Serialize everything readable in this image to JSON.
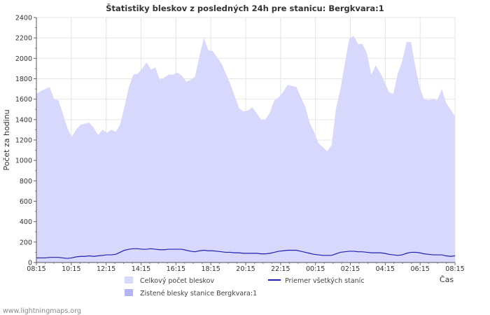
{
  "chart_data": {
    "type": "area",
    "title": "Štatistiky bleskov z posledných 24h pre stanicu: Bergkvara:1",
    "ylabel": "Počet za hodinu",
    "xlabel": "Čas",
    "ylim": [
      0,
      2400
    ],
    "yticks": [
      0,
      200,
      400,
      600,
      800,
      1000,
      1200,
      1400,
      1600,
      1800,
      2000,
      2200,
      2400
    ],
    "xticks": [
      "08:15",
      "10:15",
      "12:15",
      "14:15",
      "16:15",
      "18:15",
      "20:15",
      "22:15",
      "00:15",
      "02:15",
      "04:15",
      "06:15",
      "08:15"
    ],
    "x_minutes_span": 1440,
    "grid": true,
    "series": [
      {
        "name": "Celkový počet bleskov",
        "style": "area",
        "color": "#d8d8fc",
        "values": [
          1650,
          1680,
          1700,
          1720,
          1600,
          1590,
          1460,
          1320,
          1230,
          1300,
          1350,
          1360,
          1370,
          1320,
          1250,
          1300,
          1270,
          1300,
          1280,
          1350,
          1530,
          1720,
          1840,
          1850,
          1900,
          1960,
          1890,
          1910,
          1790,
          1810,
          1840,
          1840,
          1860,
          1830,
          1770,
          1790,
          1820,
          2020,
          2200,
          2080,
          2070,
          2010,
          1950,
          1850,
          1750,
          1630,
          1510,
          1480,
          1490,
          1520,
          1460,
          1400,
          1400,
          1470,
          1590,
          1620,
          1670,
          1740,
          1730,
          1720,
          1620,
          1530,
          1370,
          1280,
          1170,
          1130,
          1090,
          1150,
          1510,
          1700,
          1950,
          2190,
          2220,
          2140,
          2140,
          2050,
          1840,
          1930,
          1860,
          1770,
          1670,
          1650,
          1850,
          1970,
          2160,
          2160,
          1920,
          1710,
          1600,
          1590,
          1600,
          1590,
          1700,
          1560,
          1500,
          1430
        ]
      },
      {
        "name": "Zistené blesky stanice Bergkvara:1",
        "style": "area",
        "color": "#b4b4f4",
        "values": [
          0
        ]
      },
      {
        "name": "Priemer všetkých staníc",
        "style": "line",
        "color": "#2020b0",
        "values": [
          45,
          45,
          45,
          50,
          50,
          50,
          45,
          40,
          45,
          55,
          60,
          60,
          65,
          60,
          65,
          70,
          75,
          75,
          80,
          100,
          120,
          130,
          135,
          135,
          130,
          130,
          135,
          130,
          125,
          125,
          130,
          130,
          130,
          130,
          120,
          110,
          105,
          115,
          120,
          115,
          115,
          110,
          105,
          100,
          100,
          95,
          95,
          90,
          90,
          90,
          90,
          85,
          85,
          90,
          100,
          110,
          115,
          120,
          120,
          120,
          110,
          100,
          90,
          80,
          75,
          70,
          70,
          70,
          85,
          100,
          105,
          110,
          110,
          105,
          105,
          100,
          95,
          95,
          95,
          90,
          80,
          75,
          70,
          75,
          90,
          100,
          100,
          95,
          85,
          80,
          75,
          75,
          75,
          65,
          60,
          65
        ]
      }
    ],
    "legend": {
      "placement": "bottom",
      "items": [
        {
          "label": "Celkový počet bleskov",
          "kind": "box",
          "color": "#d8d8fc"
        },
        {
          "label": "Priemer všetkých staníc",
          "kind": "line",
          "color": "#2020b0"
        },
        {
          "label": "Zistené blesky stanice Bergkvara:1",
          "kind": "box",
          "color": "#b4b4f4"
        }
      ]
    },
    "footer": "www.lightningmaps.org"
  }
}
